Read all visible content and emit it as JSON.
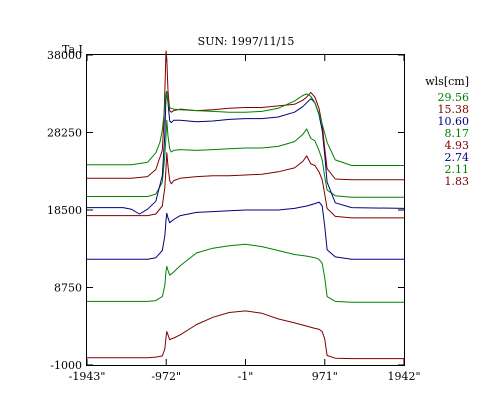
{
  "chart_data": {
    "type": "line",
    "title": "SUN: 1997/11/15",
    "ylabel": "Ta,I",
    "xlabel": "",
    "x_ticks": [
      "-1943\"",
      "-972\"",
      "-1\"",
      "971\"",
      "1942\""
    ],
    "x_tick_values": [
      -1943,
      -972,
      -1,
      971,
      1942
    ],
    "y_ticks": [
      "38000",
      "28250",
      "18500",
      "8750",
      "-1000"
    ],
    "y_tick_values": [
      38000,
      28250,
      18500,
      8750,
      -1000
    ],
    "xlim": [
      -1943,
      1942
    ],
    "ylim": [
      -1000,
      38000
    ],
    "legend_title": "wls[cm]",
    "legend_position": "right",
    "grid": false,
    "series": [
      {
        "name": "1.83",
        "color": "#800000",
        "x": [
          -1943,
          -1200,
          -1100,
          -1020,
          -990,
          -975,
          -965,
          -950,
          -930,
          -880,
          -800,
          -600,
          -400,
          -200,
          -1,
          200,
          400,
          600,
          750,
          850,
          900,
          940,
          970,
          1000,
          1100,
          1300,
          1942
        ],
        "y": [
          -100,
          -100,
          0,
          150,
          1000,
          2500,
          3200,
          2800,
          2200,
          2400,
          2800,
          4100,
          5000,
          5600,
          5800,
          5500,
          4800,
          4300,
          3900,
          3600,
          3500,
          3200,
          2300,
          200,
          -150,
          -200,
          -200
        ]
      },
      {
        "name": "2.11",
        "color": "#008000",
        "x": [
          -1943,
          -1200,
          -1100,
          -1020,
          -990,
          -975,
          -965,
          -950,
          -930,
          -880,
          -800,
          -600,
          -400,
          -200,
          -1,
          200,
          400,
          600,
          750,
          850,
          900,
          940,
          970,
          1000,
          1100,
          1300,
          1942
        ],
        "y": [
          7000,
          7000,
          7100,
          7600,
          9000,
          10800,
          11400,
          10900,
          10300,
          10700,
          11500,
          13100,
          13700,
          14000,
          14200,
          13900,
          13400,
          12900,
          12700,
          12500,
          12300,
          11800,
          10000,
          7600,
          7000,
          6900,
          6900
        ]
      },
      {
        "name": "2.74",
        "color": "#000080",
        "x": [
          -1943,
          -1200,
          -1100,
          -1020,
          -990,
          -975,
          -965,
          -950,
          -930,
          -880,
          -800,
          -600,
          -400,
          -200,
          -1,
          200,
          400,
          600,
          750,
          850,
          900,
          940,
          970,
          1000,
          1100,
          1300,
          1942
        ],
        "y": [
          12300,
          12300,
          12500,
          13400,
          15200,
          17200,
          18100,
          17500,
          16900,
          17300,
          17800,
          18200,
          18300,
          18400,
          18500,
          18500,
          18500,
          18700,
          19000,
          19300,
          19500,
          19000,
          16500,
          13500,
          12600,
          12300,
          12300
        ]
      },
      {
        "name": "4.93",
        "color": "#800000",
        "x": [
          -1943,
          -1200,
          -1100,
          -1020,
          -990,
          -975,
          -965,
          -950,
          -930,
          -910,
          -880,
          -800,
          -600,
          -400,
          -200,
          -1,
          200,
          400,
          600,
          700,
          750,
          800,
          850,
          900,
          940,
          970,
          1000,
          1100,
          1300,
          1942
        ],
        "y": [
          17800,
          17800,
          18000,
          19000,
          21300,
          23700,
          25700,
          24000,
          22200,
          21800,
          22200,
          22500,
          22700,
          22800,
          22800,
          22900,
          23000,
          23300,
          23800,
          24600,
          25300,
          24300,
          24100,
          23300,
          22300,
          20500,
          18700,
          17700,
          17500,
          17500
        ]
      },
      {
        "name": "8.17",
        "color": "#008000",
        "x": [
          -1943,
          -1200,
          -1100,
          -1020,
          -990,
          -975,
          -965,
          -950,
          -930,
          -910,
          -880,
          -800,
          -600,
          -400,
          -200,
          -1,
          200,
          400,
          600,
          700,
          750,
          800,
          850,
          900,
          940,
          970,
          1000,
          1100,
          1300,
          1942
        ],
        "y": [
          20200,
          20200,
          20500,
          22000,
          25300,
          27800,
          29800,
          27800,
          26200,
          25800,
          26000,
          26100,
          26000,
          26100,
          26200,
          26300,
          26300,
          26500,
          27100,
          28000,
          28700,
          27500,
          27200,
          26000,
          24800,
          22700,
          21000,
          20300,
          20100,
          20100
        ]
      },
      {
        "name": "10.60",
        "color": "#000080",
        "x": [
          -1943,
          -1500,
          -1400,
          -1300,
          -1200,
          -1100,
          -1020,
          -990,
          -975,
          -965,
          -950,
          -930,
          -910,
          -880,
          -800,
          -600,
          -400,
          -200,
          -1,
          200,
          400,
          600,
          700,
          800,
          850,
          900,
          940,
          970,
          1000,
          1100,
          1300,
          1942
        ],
        "y": [
          18800,
          18800,
          18600,
          18000,
          18600,
          19600,
          22800,
          28000,
          32800,
          33400,
          32000,
          29700,
          29500,
          29800,
          29800,
          29600,
          29700,
          29900,
          30000,
          30000,
          30200,
          30800,
          31500,
          32500,
          32000,
          30500,
          28500,
          25500,
          22000,
          19400,
          18800,
          18700
        ]
      },
      {
        "name": "15.38",
        "color": "#800000",
        "x": [
          -1943,
          -1400,
          -1200,
          -1100,
          -1020,
          -1000,
          -985,
          -975,
          -965,
          -950,
          -930,
          -910,
          -880,
          -800,
          -600,
          -400,
          -200,
          -1,
          200,
          400,
          600,
          700,
          750,
          800,
          850,
          900,
          940,
          970,
          1000,
          1100,
          1300,
          1942
        ],
        "y": [
          22500,
          22500,
          22700,
          23600,
          26000,
          29500,
          35000,
          38500,
          37500,
          33500,
          31000,
          30800,
          31000,
          31200,
          31000,
          31100,
          31300,
          31400,
          31400,
          31600,
          31800,
          32300,
          32700,
          33300,
          32700,
          31300,
          29200,
          26300,
          23700,
          22400,
          22300,
          22300
        ]
      },
      {
        "name": "29.56",
        "color": "#008000",
        "x": [
          -1943,
          -1400,
          -1200,
          -1100,
          -1050,
          -1020,
          -1000,
          -985,
          -970,
          -955,
          -935,
          -910,
          -880,
          -800,
          -600,
          -400,
          -200,
          -1,
          200,
          400,
          600,
          700,
          750,
          800,
          850,
          900,
          950,
          1000,
          1100,
          1300,
          1942
        ],
        "y": [
          24200,
          24200,
          24500,
          25700,
          27000,
          28500,
          30400,
          32400,
          33400,
          32300,
          31400,
          31300,
          31200,
          31100,
          31000,
          30900,
          30800,
          30800,
          30900,
          31300,
          32200,
          32900,
          33100,
          32800,
          32000,
          30600,
          28900,
          27000,
          24800,
          24100,
          24100
        ]
      }
    ]
  }
}
